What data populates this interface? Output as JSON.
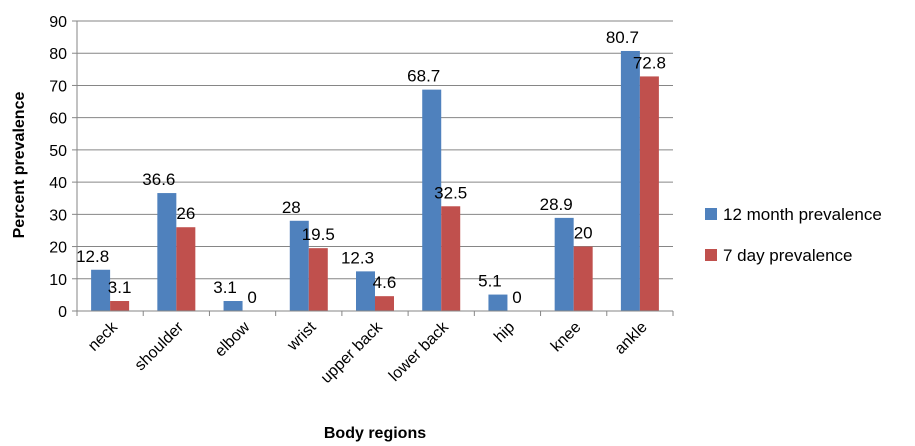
{
  "chart_data": {
    "type": "bar",
    "xlabel": "Body regions",
    "ylabel": "Percent prevalence",
    "ylim": [
      0,
      90
    ],
    "ytick_step": 10,
    "grid": true,
    "legend_position": "right",
    "categories": [
      "neck",
      "shoulder",
      "elbow",
      "wrist",
      "upper back",
      "lower back",
      "hip",
      "knee",
      "ankle"
    ],
    "series": [
      {
        "name": "12 month prevalence",
        "color": "#4F81BD",
        "values": [
          12.8,
          36.6,
          3.1,
          28,
          12.3,
          68.7,
          5.1,
          28.9,
          80.7
        ]
      },
      {
        "name": "7 day prevalence",
        "color": "#C0504D",
        "values": [
          3.1,
          26,
          0,
          19.5,
          4.6,
          32.5,
          0,
          20,
          72.8
        ]
      }
    ]
  }
}
